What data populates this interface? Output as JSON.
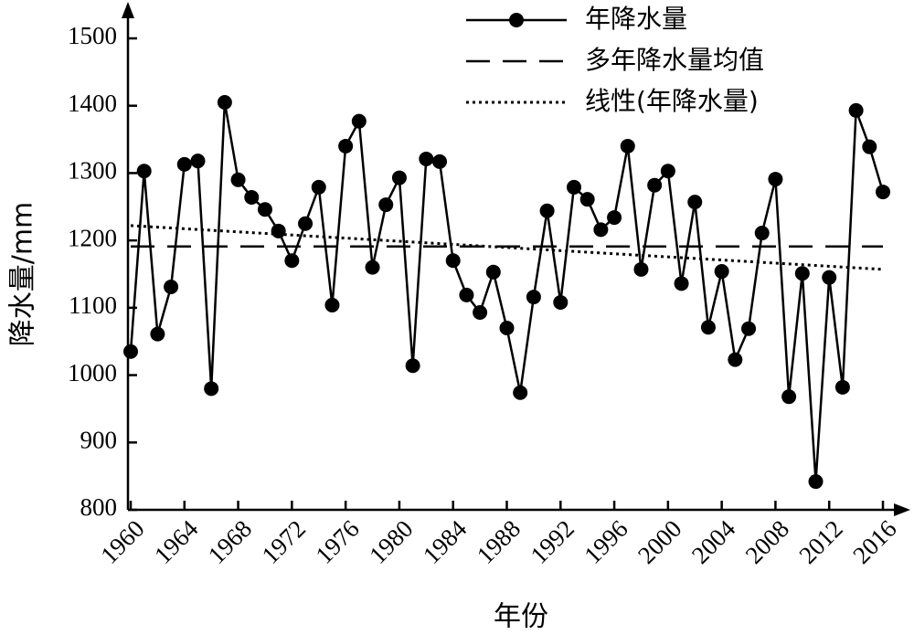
{
  "chart_data": {
    "type": "line",
    "x_label": "年份",
    "y_label": "降水量/mm",
    "x": [
      1960,
      1961,
      1962,
      1963,
      1964,
      1965,
      1966,
      1967,
      1968,
      1969,
      1970,
      1971,
      1972,
      1973,
      1974,
      1975,
      1976,
      1977,
      1978,
      1979,
      1980,
      1981,
      1982,
      1983,
      1984,
      1985,
      1986,
      1987,
      1988,
      1989,
      1990,
      1991,
      1992,
      1993,
      1994,
      1995,
      1996,
      1997,
      1998,
      1999,
      2000,
      2001,
      2002,
      2003,
      2004,
      2005,
      2006,
      2007,
      2008,
      2009,
      2010,
      2011,
      2012,
      2013,
      2014,
      2015,
      2016
    ],
    "series": [
      {
        "name": "年降水量",
        "color": "#000000",
        "style": "solid-marker",
        "values": [
          1035,
          1303,
          1061,
          1131,
          1313,
          1318,
          980,
          1405,
          1290,
          1264,
          1246,
          1214,
          1170,
          1225,
          1279,
          1104,
          1340,
          1377,
          1160,
          1253,
          1293,
          1014,
          1321,
          1317,
          1170,
          1119,
          1093,
          1153,
          1070,
          974,
          1116,
          1244,
          1108,
          1279,
          1261,
          1216,
          1234,
          1340,
          1157,
          1282,
          1303,
          1136,
          1257,
          1071,
          1154,
          1023,
          1069,
          1211,
          1291,
          968,
          1151,
          842,
          1145,
          982,
          1393,
          1339,
          1272
        ]
      },
      {
        "name": "多年降水量均值",
        "color": "#000000",
        "style": "dashed",
        "x": [
          1960,
          2016
        ],
        "values": [
          1191,
          1191
        ]
      },
      {
        "name": "线性(年降水量)",
        "color": "#000000",
        "style": "dotted",
        "x": [
          1960,
          2016
        ],
        "values": [
          1222,
          1157
        ]
      }
    ],
    "xlim": [
      1960,
      2017
    ],
    "xticks": [
      1960,
      1964,
      1968,
      1972,
      1976,
      1980,
      1984,
      1988,
      1992,
      1996,
      2000,
      2004,
      2008,
      2012,
      2016
    ],
    "ylim": [
      800,
      1500
    ],
    "yticks": [
      800,
      900,
      1000,
      1100,
      1200,
      1300,
      1400,
      1500
    ],
    "legend": "upper right"
  }
}
